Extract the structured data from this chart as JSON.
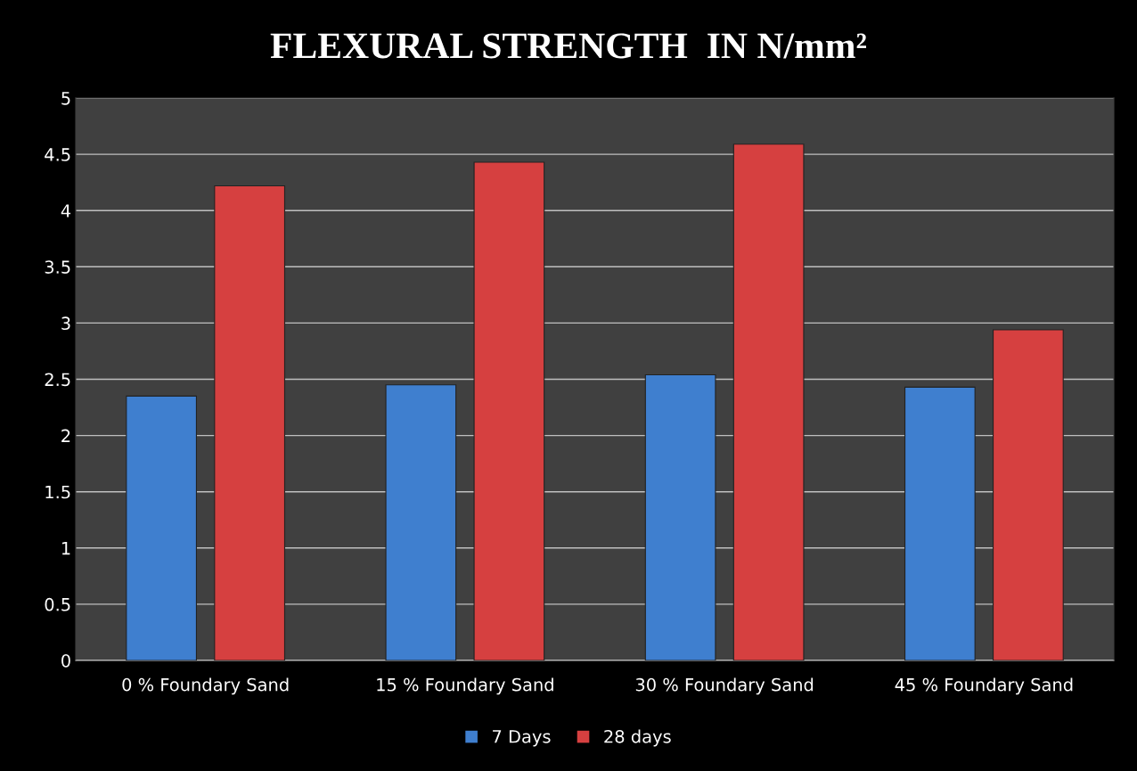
{
  "chart_data": {
    "type": "bar",
    "title": "FLEXURAL STRENGTH  IN N/mm²",
    "categories": [
      "0 % Foundary Sand",
      "15 % Foundary Sand",
      "30 % Foundary Sand",
      "45 % Foundary Sand"
    ],
    "series": [
      {
        "name": "7 Days",
        "color": "#3f7fcf",
        "values": [
          2.35,
          2.45,
          2.54,
          2.43
        ]
      },
      {
        "name": "28 days",
        "color": "#d64040",
        "values": [
          4.22,
          4.43,
          4.59,
          2.94
        ]
      }
    ],
    "ylim": [
      0,
      5
    ],
    "yticks": [
      0,
      0.5,
      1,
      1.5,
      2,
      2.5,
      3,
      3.5,
      4,
      4.5,
      5
    ],
    "grid": "y",
    "legend": "bottom"
  }
}
